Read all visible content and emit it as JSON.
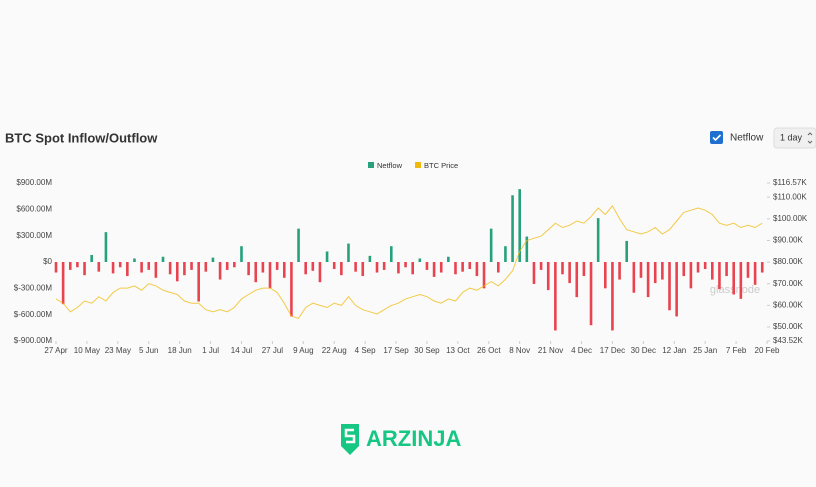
{
  "header": {
    "title": "BTC Spot Inflow/Outflow"
  },
  "controls": {
    "checkbox_label": "Netflow",
    "interval": "1 day"
  },
  "brand": "ARZINJA",
  "chart_data": {
    "type": "bar",
    "watermark": "glassnode",
    "x": [
      0,
      3,
      6,
      9,
      12,
      15,
      18,
      21,
      24,
      27,
      30,
      33,
      36,
      39,
      42,
      45,
      48,
      51,
      54,
      57,
      60,
      63,
      66,
      69,
      72,
      75,
      78,
      81,
      84,
      87,
      90,
      93,
      96,
      99,
      102,
      105,
      108,
      111,
      114,
      117,
      120,
      123,
      126,
      129,
      132,
      135,
      138,
      141,
      144,
      147,
      150,
      153,
      156,
      159,
      162,
      165,
      168,
      171,
      174,
      177,
      180,
      183,
      186,
      189,
      192,
      195,
      198,
      201,
      204,
      207,
      210,
      213,
      216,
      219,
      222,
      225,
      228,
      231,
      234,
      237,
      240,
      243,
      246,
      249,
      252,
      255,
      258,
      261,
      264,
      267,
      270,
      273,
      276,
      279,
      282,
      285,
      288,
      291,
      294,
      297
    ],
    "xlim": [
      0,
      299
    ],
    "xticks": [
      {
        "value": 0,
        "label": "27 Apr"
      },
      {
        "value": 13,
        "label": "10 May"
      },
      {
        "value": 26,
        "label": "23 May"
      },
      {
        "value": 39,
        "label": "5 Jun"
      },
      {
        "value": 52,
        "label": "18 Jun"
      },
      {
        "value": 65,
        "label": "1 Jul"
      },
      {
        "value": 78,
        "label": "14 Jul"
      },
      {
        "value": 91,
        "label": "27 Jul"
      },
      {
        "value": 104,
        "label": "9 Aug"
      },
      {
        "value": 117,
        "label": "22 Aug"
      },
      {
        "value": 130,
        "label": "4 Sep"
      },
      {
        "value": 143,
        "label": "17 Sep"
      },
      {
        "value": 156,
        "label": "30 Sep"
      },
      {
        "value": 169,
        "label": "13 Oct"
      },
      {
        "value": 182,
        "label": "26 Oct"
      },
      {
        "value": 195,
        "label": "8 Nov"
      },
      {
        "value": 208,
        "label": "21 Nov"
      },
      {
        "value": 221,
        "label": "4 Dec"
      },
      {
        "value": 234,
        "label": "17 Dec"
      },
      {
        "value": 247,
        "label": "30 Dec"
      },
      {
        "value": 260,
        "label": "12 Jan"
      },
      {
        "value": 273,
        "label": "25 Jan"
      },
      {
        "value": 286,
        "label": "7 Feb"
      },
      {
        "value": 299,
        "label": "20 Feb"
      }
    ],
    "ylim": [
      -900,
      900
    ],
    "yticks": [
      {
        "value": 900,
        "label": "$900.00M"
      },
      {
        "value": 600,
        "label": "$600.00M"
      },
      {
        "value": 300,
        "label": "$300.00M"
      },
      {
        "value": 0,
        "label": "$0"
      },
      {
        "value": -300,
        "label": "$-300.00M"
      },
      {
        "value": -600,
        "label": "$-600.00M"
      },
      {
        "value": -900,
        "label": "$-900.00M"
      }
    ],
    "y2lim": [
      43.52,
      116.57
    ],
    "y2ticks": [
      {
        "value": 116.57,
        "label": "$116.57K"
      },
      {
        "value": 110,
        "label": "$110.00K"
      },
      {
        "value": 100,
        "label": "$100.00K"
      },
      {
        "value": 90,
        "label": "$90.00K"
      },
      {
        "value": 80,
        "label": "$80.00K"
      },
      {
        "value": 70,
        "label": "$70.00K"
      },
      {
        "value": 60,
        "label": "$60.00K"
      },
      {
        "value": 50,
        "label": "$50.00K"
      },
      {
        "value": 43.52,
        "label": "$43.52K"
      }
    ],
    "series": [
      {
        "name": "Netflow",
        "color": "#26a17b",
        "negative_color": "#e8434f",
        "values": [
          -120,
          -480,
          -90,
          -60,
          -150,
          80,
          -110,
          340,
          -130,
          -60,
          -160,
          40,
          -120,
          -90,
          -180,
          60,
          -140,
          -220,
          -150,
          -90,
          -450,
          -110,
          50,
          -200,
          -90,
          -60,
          180,
          -150,
          -230,
          -120,
          -300,
          -90,
          -180,
          -620,
          380,
          -140,
          -100,
          -230,
          120,
          -80,
          -150,
          210,
          -110,
          -160,
          70,
          -120,
          -90,
          180,
          -130,
          -60,
          -140,
          40,
          -90,
          -170,
          -120,
          60,
          -140,
          -110,
          -80,
          -160,
          -300,
          380,
          -120,
          180,
          760,
          830,
          290,
          -250,
          -90,
          -320,
          -780,
          -140,
          -240,
          -400,
          -160,
          -720,
          500,
          -300,
          -780,
          -200,
          240,
          -350,
          -180,
          -400,
          -240,
          -200,
          -550,
          -620,
          -160,
          -300,
          -120,
          -80,
          -200,
          -310,
          -160,
          -370,
          -420,
          -180,
          -260,
          -120
        ]
      },
      {
        "name": "BTC Price",
        "color": "#f0b90b",
        "type": "line",
        "axis": "y2",
        "values": [
          63,
          61,
          57,
          59,
          62,
          61,
          64,
          62,
          66,
          68,
          68,
          69,
          67,
          70,
          69,
          67,
          66,
          65,
          62,
          61,
          61,
          58,
          57,
          58,
          57,
          59,
          63,
          65,
          67,
          68,
          68,
          66,
          61,
          55,
          54,
          59,
          61,
          60,
          59,
          61,
          60,
          64,
          60,
          58,
          57,
          56,
          58,
          60,
          61,
          63,
          64,
          65,
          64,
          62,
          61,
          63,
          62,
          66,
          68,
          67,
          69,
          71,
          69,
          72,
          76,
          85,
          90,
          91,
          92,
          95,
          98,
          96,
          97,
          99,
          98,
          101,
          105,
          102,
          106,
          100,
          95,
          94,
          93,
          94,
          96,
          93,
          95,
          99,
          103,
          104,
          105,
          104,
          102,
          98,
          97,
          98,
          96,
          97,
          96,
          98
        ]
      }
    ]
  }
}
